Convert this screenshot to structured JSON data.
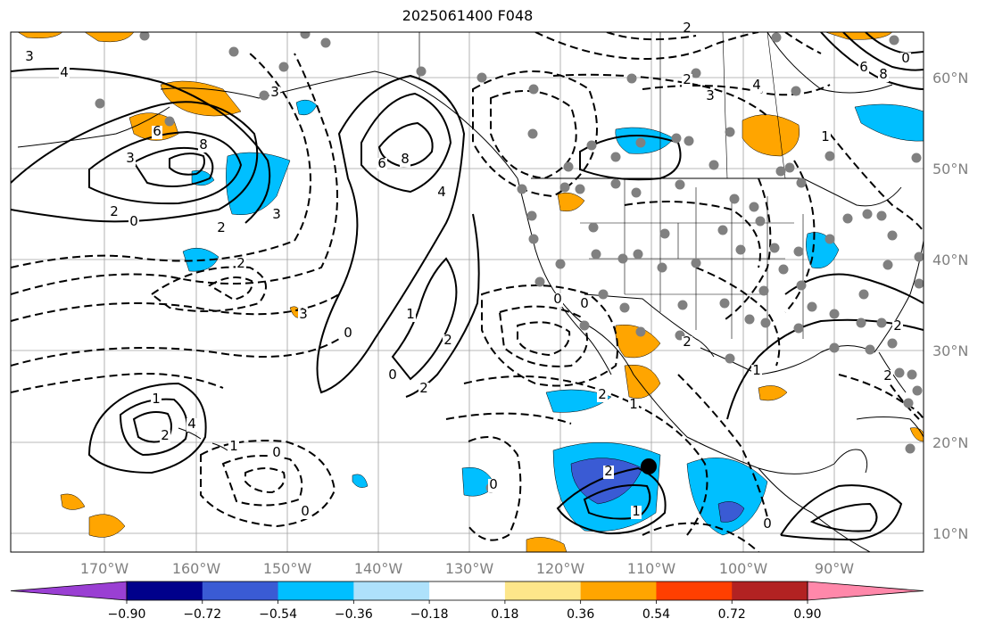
{
  "title": "2025061400 F048",
  "map": {
    "lon_ticks": [
      "170°W",
      "160°W",
      "150°W",
      "140°W",
      "130°W",
      "120°W",
      "110°W",
      "100°W",
      "90°W"
    ],
    "lat_ticks": [
      "60°N",
      "50°N",
      "40°N",
      "30°N",
      "20°N",
      "10°N"
    ],
    "grid": true
  },
  "colorbar": {
    "ticks": [
      "−0.90",
      "−0.72",
      "−0.54",
      "−0.36",
      "−0.18",
      "0.18",
      "0.36",
      "0.54",
      "0.72",
      "0.90"
    ],
    "colors": [
      "#9a3fd3",
      "#00008b",
      "#3a5bd4",
      "#00bfff",
      "#aee1fb",
      "#ffffff",
      "#fde68a",
      "#ffa500",
      "#ff3f00",
      "#b22222",
      "#ff88aa"
    ]
  },
  "contour_labels": [
    "3",
    "4",
    "3",
    "6",
    "8",
    "2",
    "0",
    "6",
    "8",
    "4",
    "3",
    "2",
    "3",
    "2",
    "3",
    "0",
    "1",
    "2",
    "2",
    "0",
    "2",
    "1",
    "0",
    "0",
    "2",
    "1",
    "1",
    "2",
    "4",
    "1",
    "0",
    "0",
    "0",
    "2",
    "1",
    "2",
    "2",
    "3",
    "4",
    "6",
    "8",
    "0",
    "1",
    "2",
    "2",
    "0"
  ],
  "colors": {
    "positive_contour": "#000000",
    "negative_contour": "#000000",
    "land_border": "#000000",
    "station_dot": "#808080"
  }
}
